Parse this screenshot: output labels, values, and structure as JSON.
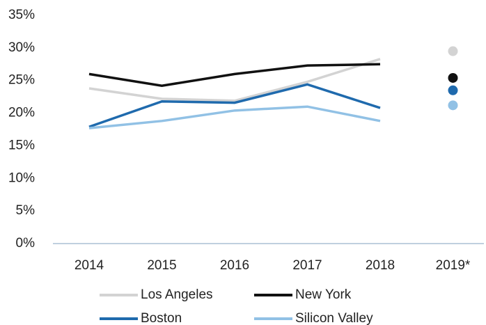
{
  "chart_data": {
    "type": "line",
    "categories": [
      "2014",
      "2015",
      "2016",
      "2017",
      "2018",
      "2019*"
    ],
    "series": [
      {
        "name": "Los Angeles",
        "color": "#d3d3d3",
        "values": [
          23.8,
          22.2,
          21.9,
          24.8,
          28.3,
          29.5
        ]
      },
      {
        "name": "New York",
        "color": "#111111",
        "values": [
          26.0,
          24.2,
          26.0,
          27.3,
          27.5,
          25.4
        ]
      },
      {
        "name": "Boston",
        "color": "#1f6aad",
        "values": [
          17.9,
          21.8,
          21.6,
          24.4,
          20.8,
          23.5
        ]
      },
      {
        "name": "Silicon Valley",
        "color": "#91c1e5",
        "values": [
          17.7,
          18.8,
          20.4,
          21.0,
          18.8,
          21.2
        ]
      }
    ],
    "last_category_as_dot": true,
    "ylim": [
      0,
      35
    ],
    "yticks": [
      {
        "value": 0,
        "label": "0%"
      },
      {
        "value": 5,
        "label": "5%"
      },
      {
        "value": 10,
        "label": "10%"
      },
      {
        "value": 15,
        "label": "15%"
      },
      {
        "value": 20,
        "label": "20%"
      },
      {
        "value": 25,
        "label": "25%"
      },
      {
        "value": 30,
        "label": "30%"
      },
      {
        "value": 35,
        "label": "35%"
      }
    ],
    "grid": false,
    "legend": "bottom"
  }
}
